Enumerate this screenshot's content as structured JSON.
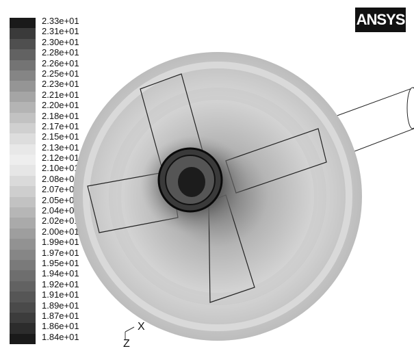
{
  "logo": {
    "text": "ANSYS"
  },
  "legend": {
    "labels": [
      "2.33e+01",
      "2.31e+01",
      "2.30e+01",
      "2.28e+01",
      "2.26e+01",
      "2.25e+01",
      "2.23e+01",
      "2.21e+01",
      "2.20e+01",
      "2.18e+01",
      "2.17e+01",
      "2.15e+01",
      "2.13e+01",
      "2.12e+01",
      "2.10e+01",
      "2.08e+01",
      "2.07e+01",
      "2.05e+01",
      "2.04e+01",
      "2.02e+01",
      "2.00e+01",
      "1.99e+01",
      "1.97e+01",
      "1.95e+01",
      "1.94e+01",
      "1.92e+01",
      "1.91e+01",
      "1.89e+01",
      "1.87e+01",
      "1.86e+01",
      "1.84e+01"
    ],
    "colors": [
      "#1a1a1a",
      "#3a3a3a",
      "#4f4f4f",
      "#626262",
      "#747474",
      "#858585",
      "#959595",
      "#a5a5a5",
      "#b4b4b4",
      "#c2c2c2",
      "#d0d0d0",
      "#dddddd",
      "#e8e8e8",
      "#eeeeee",
      "#e6e6e6",
      "#dadada",
      "#cecece",
      "#c2c2c2",
      "#b6b6b6",
      "#aaaaaa",
      "#9e9e9e",
      "#929292",
      "#868686",
      "#7a7a7a",
      "#6e6e6e",
      "#626262",
      "#565656",
      "#4a4a4a",
      "#3c3c3c",
      "#2c2c2c",
      "#1a1a1a"
    ]
  },
  "axes": {
    "x_label": "X",
    "z_label": "Z"
  }
}
